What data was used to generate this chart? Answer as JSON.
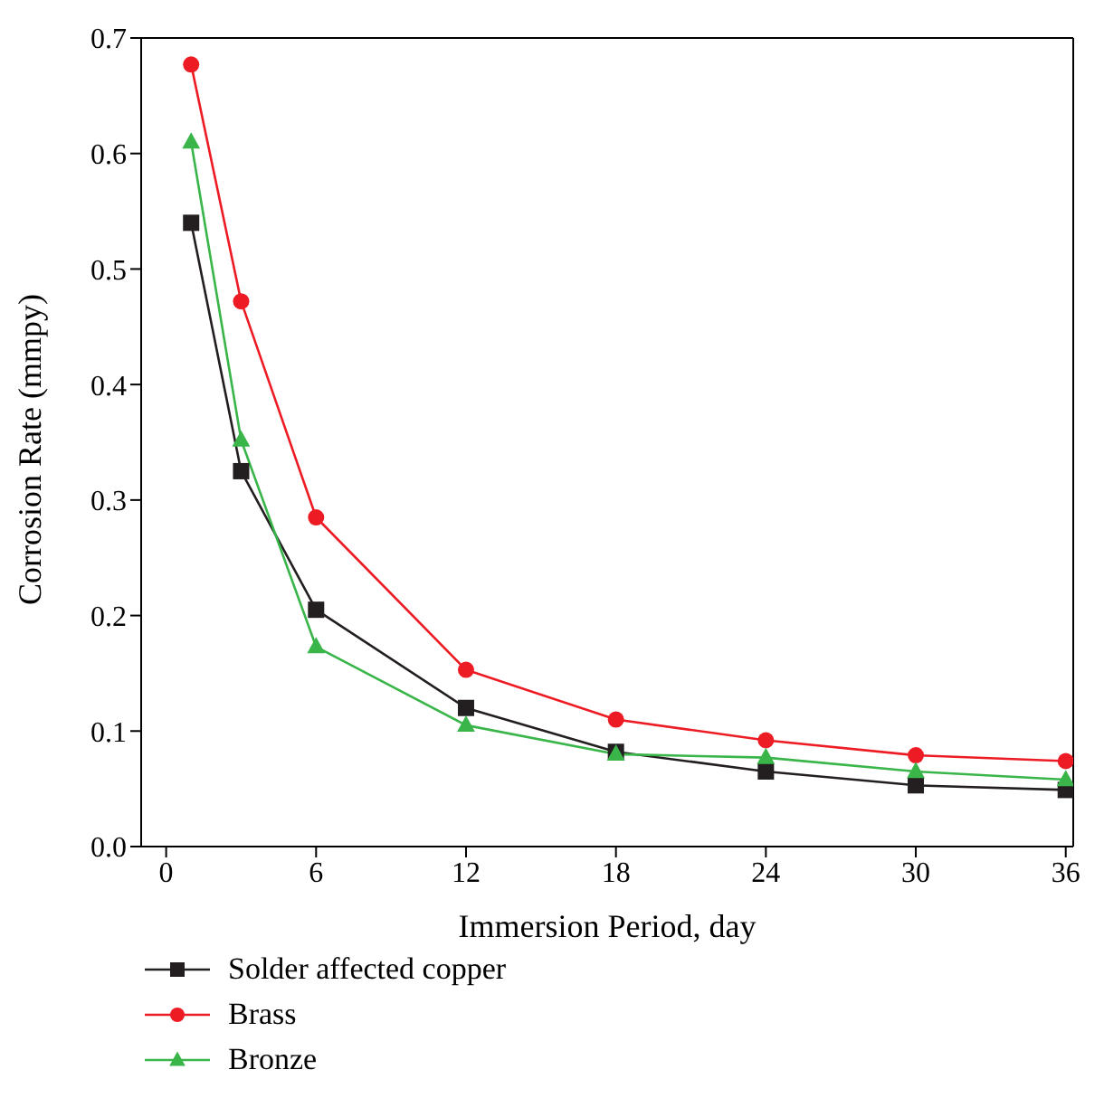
{
  "chart_data": {
    "type": "line",
    "xlabel": "Immersion Period, day",
    "ylabel": "Corrosion Rate (mmpy)",
    "x": [
      1,
      3,
      6,
      12,
      18,
      24,
      30,
      36
    ],
    "series": [
      {
        "name": "Solder affected copper",
        "color": "#231f20",
        "marker": "square",
        "values": [
          0.54,
          0.325,
          0.205,
          0.12,
          0.082,
          0.065,
          0.053,
          0.049
        ]
      },
      {
        "name": "Brass",
        "color": "#ed1c24",
        "marker": "circle",
        "values": [
          0.677,
          0.472,
          0.285,
          0.153,
          0.11,
          0.092,
          0.079,
          0.074
        ]
      },
      {
        "name": "Bronze",
        "color": "#39b54a",
        "marker": "triangle",
        "values": [
          0.61,
          0.352,
          0.173,
          0.105,
          0.08,
          0.077,
          0.065,
          0.058
        ]
      }
    ],
    "xlim": [
      -1,
      36.3
    ],
    "xticks": [
      0,
      6,
      12,
      18,
      24,
      30,
      36
    ],
    "ylim": [
      0,
      0.7
    ],
    "yticks": [
      {
        "value": 0,
        "label": "0.0"
      },
      {
        "value": 0.1,
        "label": "0.1"
      },
      {
        "value": 0.2,
        "label": "0.2"
      },
      {
        "value": 0.3,
        "label": "0.3"
      },
      {
        "value": 0.4,
        "label": "0.4"
      },
      {
        "value": 0.5,
        "label": "0.5"
      },
      {
        "value": 0.6,
        "label": "0.6"
      },
      {
        "value": 0.7,
        "label": "0.7"
      }
    ],
    "grid": false,
    "legend": "bottom left",
    "line_style": "solid"
  }
}
